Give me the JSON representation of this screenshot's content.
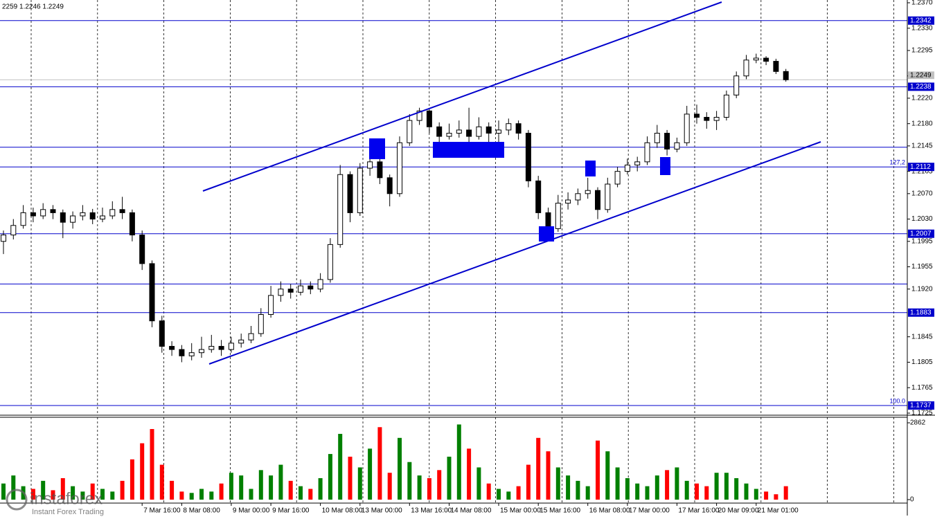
{
  "header": {
    "ohlc_text": "2259 1.2246 1.2249"
  },
  "branding": {
    "name": "instaforex",
    "tagline": "Instant Forex Trading"
  },
  "chart_data": [
    {
      "type": "candlestick",
      "up_color": "#ffffff",
      "down_color": "#000000",
      "categories": [
        null,
        null,
        null,
        null,
        null,
        null,
        null,
        null,
        null,
        null,
        null,
        null,
        null,
        null,
        "7 Mar 16:00",
        null,
        null,
        null,
        "8 Mar 08:00",
        null,
        null,
        null,
        null,
        "9 Mar 00:00",
        null,
        null,
        null,
        "9 Mar 16:00",
        null,
        null,
        null,
        null,
        "10 Mar 08:00",
        null,
        null,
        null,
        "13 Mar 00:00",
        null,
        null,
        null,
        null,
        "13 Mar 16:00",
        null,
        null,
        null,
        "14 Mar 08:00",
        null,
        null,
        null,
        null,
        "15 Mar 00:00",
        null,
        null,
        null,
        "15 Mar 16:00",
        null,
        null,
        null,
        null,
        "16 Mar 08:00",
        null,
        null,
        null,
        "17 Mar 00:00",
        null,
        null,
        null,
        null,
        "17 Mar 16:00",
        null,
        null,
        null,
        "20 Mar 09:00",
        null,
        null,
        null,
        "21 Mar 01:00",
        null,
        null,
        null
      ],
      "open": [
        1.1995,
        1.2005,
        1.202,
        1.204,
        1.2035,
        1.2045,
        1.204,
        1.2025,
        1.2035,
        1.204,
        1.203,
        1.2035,
        1.2045,
        1.204,
        1.2005,
        1.196,
        1.187,
        1.183,
        1.1825,
        1.1815,
        1.182,
        1.1825,
        1.183,
        1.1825,
        1.1835,
        1.184,
        1.185,
        1.188,
        1.191,
        1.192,
        1.1915,
        1.1925,
        1.192,
        1.1935,
        1.199,
        1.21,
        1.204,
        1.211,
        1.212,
        1.2095,
        1.207,
        1.215,
        1.2185,
        1.22,
        1.2175,
        1.216,
        1.2165,
        1.217,
        1.216,
        1.2175,
        1.2165,
        1.217,
        1.218,
        1.2165,
        1.209,
        1.204,
        1.2015,
        1.2055,
        1.206,
        1.207,
        1.2075,
        1.2045,
        1.2085,
        1.2105,
        1.2115,
        1.212,
        1.215,
        1.2165,
        1.214,
        1.215,
        1.2195,
        1.219,
        1.2185,
        1.219,
        1.2225,
        1.2255,
        1.228,
        1.2283,
        1.2278,
        1.2262
      ],
      "high": [
        1.2012,
        1.203,
        1.2052,
        1.2048,
        1.2055,
        1.2052,
        1.2045,
        1.2042,
        1.2052,
        1.2046,
        1.2048,
        1.2058,
        1.2065,
        1.2045,
        1.2012,
        1.1965,
        1.1878,
        1.1838,
        1.1832,
        1.1835,
        1.1845,
        1.1848,
        1.184,
        1.1845,
        1.185,
        1.1862,
        1.189,
        1.1925,
        1.1932,
        1.1928,
        1.1935,
        1.1932,
        1.1945,
        1.2,
        1.2115,
        1.2105,
        1.2118,
        1.214,
        1.2125,
        1.21,
        1.216,
        1.2195,
        1.2205,
        1.2202,
        1.2182,
        1.218,
        1.2185,
        1.2205,
        1.219,
        1.2182,
        1.2185,
        1.2188,
        1.2185,
        1.217,
        1.2098,
        1.2048,
        1.2068,
        1.2072,
        1.2078,
        1.2095,
        1.208,
        1.2095,
        1.2112,
        1.2125,
        1.2128,
        1.216,
        1.2178,
        1.217,
        1.2158,
        1.2208,
        1.221,
        1.2198,
        1.22,
        1.2232,
        1.2262,
        1.2288,
        1.229,
        1.2286,
        1.2282,
        1.2266
      ],
      "low": [
        1.1975,
        1.1998,
        1.2015,
        1.2025,
        1.203,
        1.203,
        1.2,
        1.2015,
        1.2028,
        1.2022,
        1.2025,
        1.203,
        1.203,
        1.1995,
        1.195,
        1.186,
        1.182,
        1.1815,
        1.1805,
        1.1808,
        1.1812,
        1.182,
        1.1815,
        1.182,
        1.1828,
        1.1835,
        1.1845,
        1.1875,
        1.19,
        1.1905,
        1.191,
        1.1912,
        1.1915,
        1.193,
        1.1985,
        1.2025,
        1.2035,
        1.2098,
        1.2085,
        1.205,
        1.2065,
        1.2145,
        1.2178,
        1.2165,
        1.215,
        1.2155,
        1.2158,
        1.215,
        1.2155,
        1.215,
        1.215,
        1.2162,
        1.2155,
        1.208,
        1.203,
        1.2,
        1.201,
        1.2045,
        1.2052,
        1.2062,
        1.203,
        1.204,
        1.208,
        1.21,
        1.2105,
        1.2115,
        1.2142,
        1.213,
        1.2135,
        1.2145,
        1.218,
        1.2172,
        1.217,
        1.2185,
        1.222,
        1.225,
        1.2275,
        1.2272,
        1.2258,
        1.2246
      ],
      "close": [
        1.2005,
        1.202,
        1.204,
        1.2035,
        1.2045,
        1.204,
        1.2025,
        1.2035,
        1.204,
        1.203,
        1.2035,
        1.2045,
        1.204,
        1.2005,
        1.196,
        1.187,
        1.183,
        1.1825,
        1.1815,
        1.182,
        1.1825,
        1.183,
        1.1825,
        1.1835,
        1.184,
        1.185,
        1.188,
        1.191,
        1.192,
        1.1915,
        1.1925,
        1.192,
        1.1935,
        1.199,
        1.21,
        1.204,
        1.211,
        1.212,
        1.2095,
        1.207,
        1.215,
        1.2185,
        1.22,
        1.2175,
        1.216,
        1.2165,
        1.217,
        1.216,
        1.2175,
        1.2165,
        1.217,
        1.218,
        1.2165,
        1.209,
        1.204,
        1.2015,
        1.2055,
        1.206,
        1.207,
        1.2075,
        1.2045,
        1.2085,
        1.2105,
        1.2115,
        1.212,
        1.215,
        1.2165,
        1.214,
        1.215,
        1.2195,
        1.219,
        1.2185,
        1.219,
        1.2225,
        1.2255,
        1.228,
        1.2283,
        1.2278,
        1.2262,
        1.2249
      ],
      "ylim": [
        1.1725,
        1.237
      ],
      "yticks": [
        {
          "value": 1.237,
          "label": "1.2370"
        },
        {
          "value": 1.233,
          "label": "1.2330"
        },
        1.2295,
        1.2255,
        {
          "value": 1.222,
          "label": "1.2220"
        },
        {
          "value": 1.218,
          "label": "1.2180"
        },
        1.2145,
        1.2105,
        {
          "value": 1.207,
          "label": "1.2070"
        },
        {
          "value": 1.203,
          "label": "1.2030"
        },
        1.1995,
        1.1955,
        {
          "value": 1.192,
          "label": "1.1920"
        },
        1.1845,
        1.1805,
        1.1765,
        1.1725
      ],
      "level_color": "#0000cc",
      "levels": [
        {
          "value": 1.2342,
          "labeled": true
        },
        {
          "value": 1.2238,
          "labeled": true
        },
        {
          "value": 1.2143
        },
        {
          "value": 1.2112,
          "labeled": true,
          "note": "127,2"
        },
        {
          "value": 1.2007,
          "labeled": true
        },
        {
          "value": 1.1928
        },
        {
          "value": 1.1883,
          "labeled": true
        },
        {
          "value": 1.1737,
          "labeled": true,
          "note": "100.0"
        }
      ],
      "current_price": {
        "value": 1.2249,
        "label": "1.2249"
      }
    },
    {
      "type": "bar",
      "up_color": "#008000",
      "down_color": "#ff0000",
      "values": [
        600,
        900,
        500,
        400,
        700,
        350,
        800,
        500,
        300,
        600,
        400,
        300,
        700,
        1500,
        2100,
        2630,
        1300,
        700,
        300,
        250,
        400,
        300,
        600,
        1000,
        900,
        400,
        1100,
        900,
        1300,
        700,
        500,
        400,
        800,
        1700,
        2450,
        1600,
        1200,
        1900,
        2700,
        1000,
        2300,
        1400,
        900,
        800,
        1100,
        1600,
        2800,
        1900,
        1200,
        600,
        400,
        300,
        500,
        1300,
        2300,
        1800,
        1200,
        900,
        700,
        500,
        2200,
        1800,
        1200,
        800,
        600,
        500,
        900,
        1100,
        1200,
        700,
        600,
        500,
        1000,
        1000,
        800,
        600,
        400,
        300,
        200,
        500
      ],
      "ylim": [
        0,
        2862
      ],
      "yticks": [
        0,
        2862
      ]
    }
  ]
}
